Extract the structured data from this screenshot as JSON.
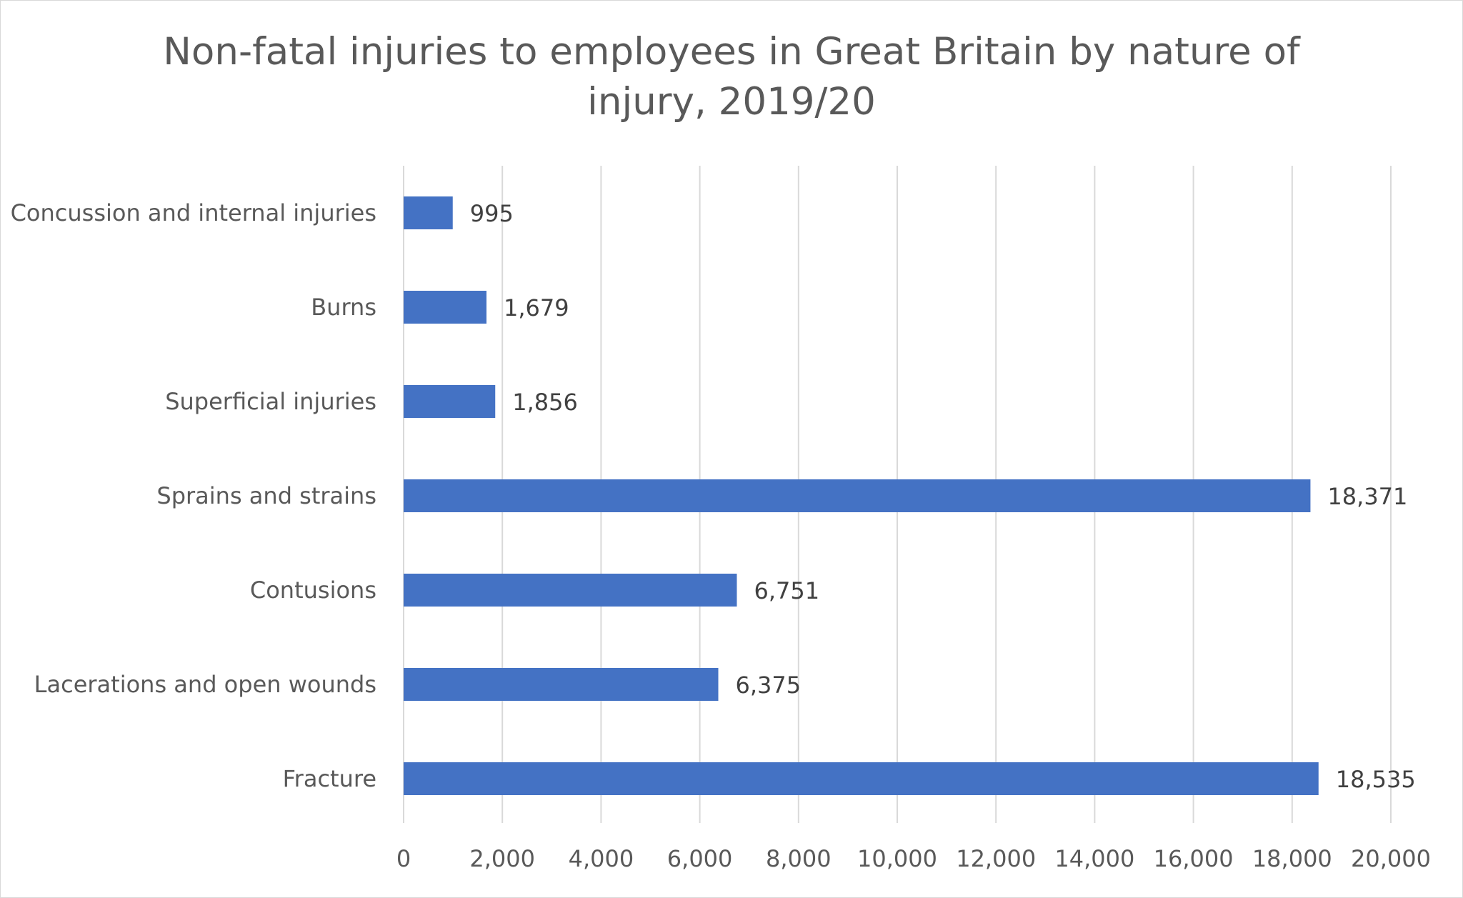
{
  "chart_data": {
    "type": "bar",
    "orientation": "horizontal",
    "title_lines": [
      "Non-fatal injuries to employees in Great Britain by nature of",
      "injury, 2019/20"
    ],
    "categories": [
      "Concussion and internal injuries",
      "Burns",
      "Superficial injuries",
      "Sprains and strains",
      "Contusions",
      "Lacerations and open wounds",
      "Fracture"
    ],
    "values": [
      995,
      1679,
      1856,
      18371,
      6751,
      6375,
      18535
    ],
    "data_labels": [
      "995",
      "1,679",
      "1,856",
      "18,371",
      "6,751",
      "6,375",
      "18,535"
    ],
    "xlim": [
      0,
      20000
    ],
    "x_ticks": [
      0,
      2000,
      4000,
      6000,
      8000,
      10000,
      12000,
      14000,
      16000,
      18000,
      20000
    ],
    "x_tick_labels": [
      "0",
      "2,000",
      "4,000",
      "6,000",
      "8,000",
      "10,000",
      "12,000",
      "14,000",
      "16,000",
      "18,000",
      "20,000"
    ],
    "grid": "vertical",
    "legend": "none",
    "bar_color": "#4472c4",
    "grid_color": "#d9d9d9"
  }
}
